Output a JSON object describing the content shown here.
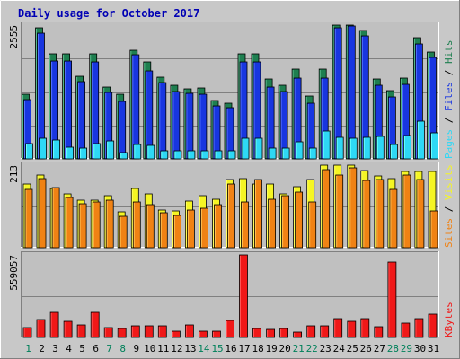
{
  "chart_data": [
    {
      "type": "bar",
      "title": "Daily usage for October 2017",
      "categories": [
        "1",
        "2",
        "3",
        "4",
        "5",
        "6",
        "7",
        "8",
        "9",
        "10",
        "11",
        "12",
        "13",
        "14",
        "15",
        "16",
        "17",
        "18",
        "19",
        "20",
        "21",
        "22",
        "23",
        "24",
        "25",
        "26",
        "27",
        "28",
        "29",
        "30",
        "31"
      ],
      "weekend_days": [
        "1",
        "7",
        "8",
        "14",
        "15",
        "21",
        "22",
        "28",
        "29"
      ],
      "ymax_label": "2555",
      "ylim": [
        0,
        2555
      ],
      "ylabel_parts": [
        "Pages",
        "Files",
        "Hits"
      ],
      "ylabel_separator": " / ",
      "series": [
        {
          "name": "Hits",
          "color": "#1e7f50",
          "values": [
            1232,
            2500,
            2000,
            2000,
            1580,
            2000,
            1380,
            1230,
            2080,
            1860,
            1560,
            1400,
            1340,
            1350,
            1120,
            1070,
            2000,
            2000,
            1520,
            1400,
            1720,
            1200,
            1720,
            2600,
            2620,
            2460,
            1530,
            1300,
            1550,
            2310,
            2040
          ]
        },
        {
          "name": "Files",
          "color": "#1836e0",
          "values": [
            1130,
            2400,
            1870,
            1870,
            1470,
            1860,
            1270,
            1100,
            1990,
            1680,
            1450,
            1290,
            1250,
            1240,
            1010,
            980,
            1860,
            1850,
            1380,
            1290,
            1550,
            1060,
            1550,
            2500,
            2540,
            2350,
            1400,
            1180,
            1420,
            2200,
            1940
          ]
        },
        {
          "name": "Pages",
          "color": "#2ed8f5",
          "values": [
            290,
            390,
            360,
            220,
            200,
            300,
            340,
            120,
            270,
            260,
            160,
            150,
            160,
            150,
            150,
            150,
            400,
            400,
            210,
            210,
            330,
            210,
            540,
            410,
            390,
            420,
            430,
            280,
            440,
            720,
            500
          ]
        }
      ]
    },
    {
      "type": "bar",
      "categories": [
        "1",
        "2",
        "3",
        "4",
        "5",
        "6",
        "7",
        "8",
        "9",
        "10",
        "11",
        "12",
        "13",
        "14",
        "15",
        "16",
        "17",
        "18",
        "19",
        "20",
        "21",
        "22",
        "23",
        "24",
        "25",
        "26",
        "27",
        "28",
        "29",
        "30",
        "31"
      ],
      "ymax_label": "213",
      "ylim": [
        0,
        213
      ],
      "ylabel_parts": [
        "Sites",
        "Visits"
      ],
      "ylabel_separator": " / ",
      "series": [
        {
          "name": "Visits",
          "color": "#f5f524",
          "values": [
            164,
            187,
            153,
            140,
            123,
            122,
            134,
            93,
            153,
            140,
            98,
            96,
            120,
            135,
            125,
            175,
            178,
            165,
            165,
            140,
            157,
            176,
            213,
            213,
            213,
            200,
            186,
            178,
            196,
            197,
            197
          ]
        },
        {
          "name": "Sites",
          "color": "#f08214",
          "values": [
            150,
            178,
            156,
            130,
            113,
            118,
            123,
            81,
            118,
            111,
            90,
            84,
            98,
            103,
            110,
            165,
            117,
            175,
            125,
            134,
            143,
            119,
            201,
            187,
            206,
            174,
            177,
            151,
            187,
            175,
            95
          ]
        }
      ]
    },
    {
      "type": "bar",
      "categories": [
        "1",
        "2",
        "3",
        "4",
        "5",
        "6",
        "7",
        "8",
        "9",
        "10",
        "11",
        "12",
        "13",
        "14",
        "15",
        "16",
        "17",
        "18",
        "19",
        "20",
        "21",
        "22",
        "23",
        "24",
        "25",
        "26",
        "27",
        "28",
        "29",
        "30",
        "31"
      ],
      "ymax_label": "559057",
      "ylim": [
        0,
        559057
      ],
      "ylabel_parts": [
        "KBytes"
      ],
      "ylabel_separator": "",
      "series": [
        {
          "name": "KBytes",
          "color": "#f01818",
          "values": [
            65000,
            120000,
            170000,
            110000,
            85000,
            170000,
            65000,
            60000,
            80000,
            80000,
            78000,
            45000,
            85000,
            40000,
            45000,
            115000,
            565000,
            60000,
            55000,
            60000,
            35000,
            80000,
            80000,
            130000,
            110000,
            130000,
            75000,
            510000,
            100000,
            125000,
            155000
          ]
        }
      ]
    }
  ]
}
